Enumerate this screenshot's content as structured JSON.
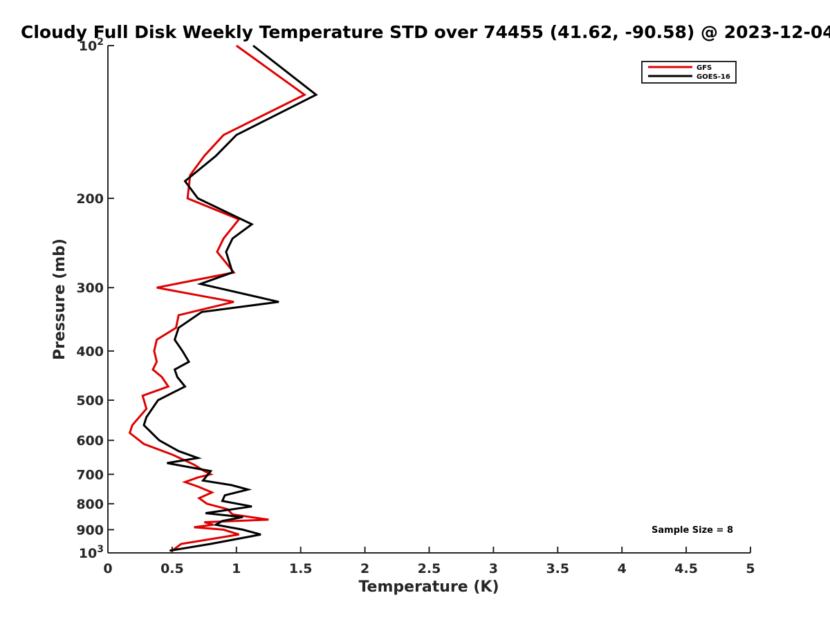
{
  "chart_data": {
    "type": "line",
    "title": "Cloudy Full Disk Weekly Temperature STD over 74455 (41.62, -90.58) @ 2023-12-04",
    "xlabel": "Temperature (K)",
    "ylabel": "Pressure (mb)",
    "xlim": [
      0,
      5
    ],
    "ylim": [
      1000,
      100
    ],
    "y_scale": "log",
    "y_reversed": true,
    "x_ticks": [
      "0",
      "0.5",
      "1",
      "1.5",
      "2",
      "2.5",
      "3",
      "3.5",
      "4",
      "4.5",
      "5"
    ],
    "y_ticks": [
      {
        "value": 100,
        "label": "10",
        "exp": "2"
      },
      {
        "value": 200,
        "label": "200"
      },
      {
        "value": 300,
        "label": "300"
      },
      {
        "value": 400,
        "label": "400"
      },
      {
        "value": 500,
        "label": "500"
      },
      {
        "value": 600,
        "label": "600"
      },
      {
        "value": 700,
        "label": "700"
      },
      {
        "value": 800,
        "label": "800"
      },
      {
        "value": 900,
        "label": "900"
      },
      {
        "value": 1000,
        "label": "10",
        "exp": "3"
      }
    ],
    "legend_position": "top-right",
    "grid": false,
    "annotation": "Sample Size = 8",
    "series": [
      {
        "name": "GFS",
        "color": "#e00000",
        "points": [
          [
            1.0,
            100
          ],
          [
            1.53,
            125
          ],
          [
            0.9,
            150
          ],
          [
            0.75,
            165
          ],
          [
            0.64,
            180
          ],
          [
            0.62,
            200
          ],
          [
            1.02,
            220
          ],
          [
            0.9,
            240
          ],
          [
            0.85,
            255
          ],
          [
            0.98,
            280
          ],
          [
            0.38,
            300
          ],
          [
            0.98,
            320
          ],
          [
            0.55,
            340
          ],
          [
            0.53,
            360
          ],
          [
            0.38,
            380
          ],
          [
            0.36,
            400
          ],
          [
            0.38,
            420
          ],
          [
            0.35,
            435
          ],
          [
            0.42,
            450
          ],
          [
            0.47,
            470
          ],
          [
            0.27,
            490
          ],
          [
            0.3,
            520
          ],
          [
            0.19,
            560
          ],
          [
            0.17,
            580
          ],
          [
            0.28,
            610
          ],
          [
            0.5,
            640
          ],
          [
            0.67,
            670
          ],
          [
            0.75,
            690
          ],
          [
            0.8,
            700
          ],
          [
            0.7,
            710
          ],
          [
            0.6,
            725
          ],
          [
            0.7,
            740
          ],
          [
            0.81,
            760
          ],
          [
            0.71,
            780
          ],
          [
            0.77,
            800
          ],
          [
            0.93,
            820
          ],
          [
            0.97,
            840
          ],
          [
            1.25,
            860
          ],
          [
            0.75,
            870
          ],
          [
            0.82,
            880
          ],
          [
            0.67,
            890
          ],
          [
            0.9,
            900
          ],
          [
            1.02,
            920
          ],
          [
            0.57,
            960
          ],
          [
            0.5,
            990
          ]
        ]
      },
      {
        "name": "GOES-16",
        "color": "#000000",
        "points": [
          [
            1.13,
            100
          ],
          [
            1.62,
            125
          ],
          [
            1.0,
            150
          ],
          [
            0.84,
            165
          ],
          [
            0.6,
            185
          ],
          [
            0.7,
            200
          ],
          [
            1.12,
            225
          ],
          [
            0.97,
            240
          ],
          [
            0.92,
            255
          ],
          [
            0.97,
            280
          ],
          [
            0.72,
            295
          ],
          [
            1.33,
            320
          ],
          [
            0.73,
            335
          ],
          [
            0.55,
            360
          ],
          [
            0.52,
            380
          ],
          [
            0.58,
            400
          ],
          [
            0.63,
            420
          ],
          [
            0.52,
            435
          ],
          [
            0.54,
            450
          ],
          [
            0.6,
            470
          ],
          [
            0.39,
            500
          ],
          [
            0.3,
            540
          ],
          [
            0.28,
            560
          ],
          [
            0.4,
            600
          ],
          [
            0.55,
            630
          ],
          [
            0.7,
            650
          ],
          [
            0.46,
            665
          ],
          [
            0.8,
            690
          ],
          [
            0.74,
            720
          ],
          [
            0.96,
            735
          ],
          [
            1.09,
            750
          ],
          [
            0.91,
            770
          ],
          [
            0.89,
            790
          ],
          [
            1.12,
            810
          ],
          [
            0.76,
            835
          ],
          [
            1.05,
            850
          ],
          [
            0.89,
            865
          ],
          [
            0.84,
            880
          ],
          [
            1.05,
            900
          ],
          [
            1.19,
            920
          ],
          [
            0.8,
            960
          ],
          [
            0.48,
            990
          ]
        ]
      }
    ]
  }
}
